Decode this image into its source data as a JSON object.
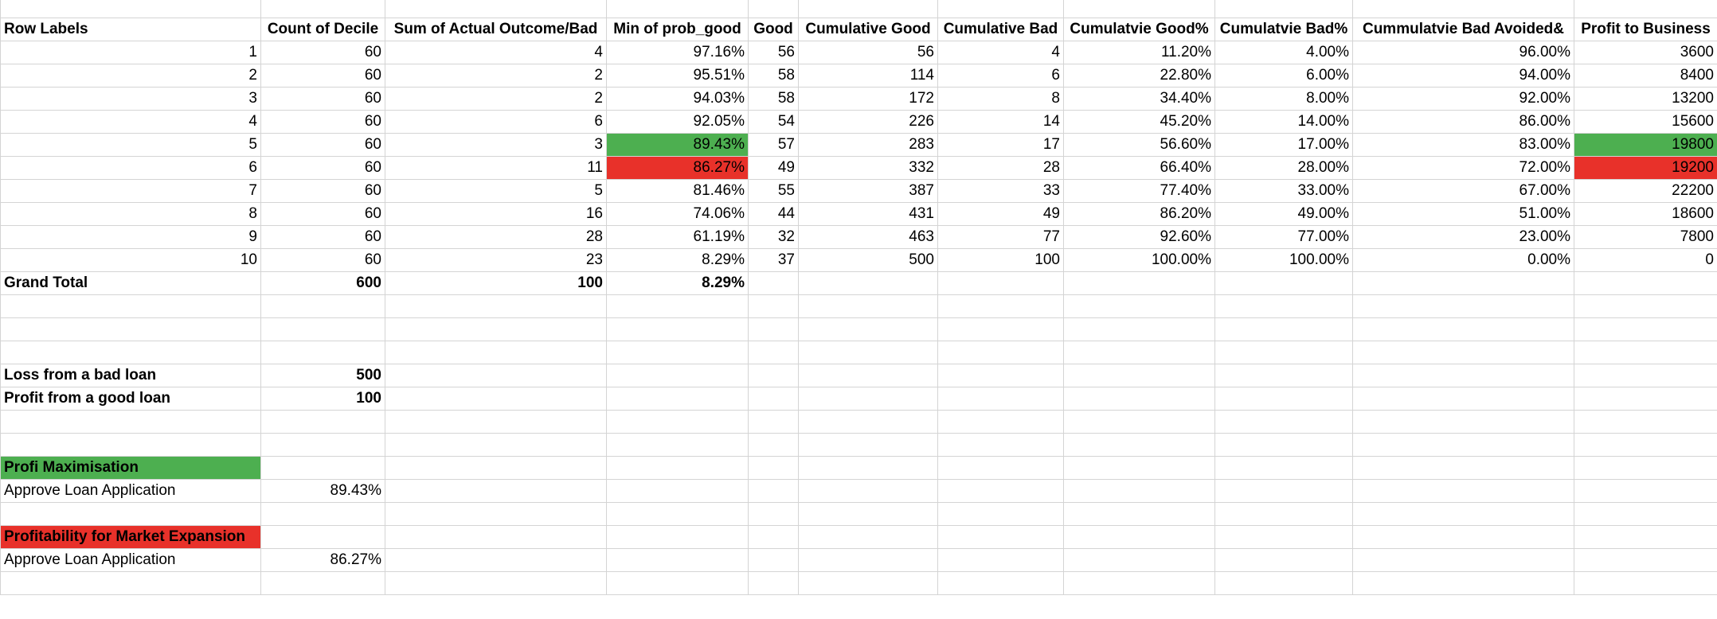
{
  "colors": {
    "green": "#4daf50",
    "red": "#e8312a",
    "gridline": "#d4d4d4"
  },
  "headers": [
    "Row Labels",
    "Count of Decile",
    "Sum of Actual Outcome/Bad",
    "Min of prob_good",
    "Good",
    "Cumulative Good",
    "Cumulative Bad",
    "Cumulatvie Good%",
    "Cumulatvie Bad%",
    "Cummulatvie Bad Avoided&",
    "Profit to Business"
  ],
  "rows": [
    [
      "1",
      "60",
      "4",
      "97.16%",
      "56",
      "56",
      "4",
      "11.20%",
      "4.00%",
      "96.00%",
      "3600"
    ],
    [
      "2",
      "60",
      "2",
      "95.51%",
      "58",
      "114",
      "6",
      "22.80%",
      "6.00%",
      "94.00%",
      "8400"
    ],
    [
      "3",
      "60",
      "2",
      "94.03%",
      "58",
      "172",
      "8",
      "34.40%",
      "8.00%",
      "92.00%",
      "13200"
    ],
    [
      "4",
      "60",
      "6",
      "92.05%",
      "54",
      "226",
      "14",
      "45.20%",
      "14.00%",
      "86.00%",
      "15600"
    ],
    [
      "5",
      "60",
      "3",
      "89.43%",
      "57",
      "283",
      "17",
      "56.60%",
      "17.00%",
      "83.00%",
      "19800"
    ],
    [
      "6",
      "60",
      "11",
      "86.27%",
      "49",
      "332",
      "28",
      "66.40%",
      "28.00%",
      "72.00%",
      "19200"
    ],
    [
      "7",
      "60",
      "5",
      "81.46%",
      "55",
      "387",
      "33",
      "77.40%",
      "33.00%",
      "67.00%",
      "22200"
    ],
    [
      "8",
      "60",
      "16",
      "74.06%",
      "44",
      "431",
      "49",
      "86.20%",
      "49.00%",
      "51.00%",
      "18600"
    ],
    [
      "9",
      "60",
      "28",
      "61.19%",
      "32",
      "463",
      "77",
      "92.60%",
      "77.00%",
      "23.00%",
      "7800"
    ],
    [
      "10",
      "60",
      "23",
      "8.29%",
      "37",
      "500",
      "100",
      "100.00%",
      "100.00%",
      "0.00%",
      "0"
    ]
  ],
  "grand_total": {
    "label": "Grand Total",
    "count": "600",
    "sum_bad": "100",
    "min_prob": "8.29%"
  },
  "assumptions": {
    "loss_label": "Loss from a bad loan",
    "loss_value": "500",
    "profit_label": "Profit from a good loan",
    "profit_value": "100"
  },
  "strategies": {
    "maximisation_title": "Profi Maximisation",
    "maximisation_label": "Approve Loan Application",
    "maximisation_value": "89.43%",
    "expansion_title": "Profitability for Market Expansion",
    "expansion_label": "Approve Loan Application",
    "expansion_value": "86.27%"
  }
}
